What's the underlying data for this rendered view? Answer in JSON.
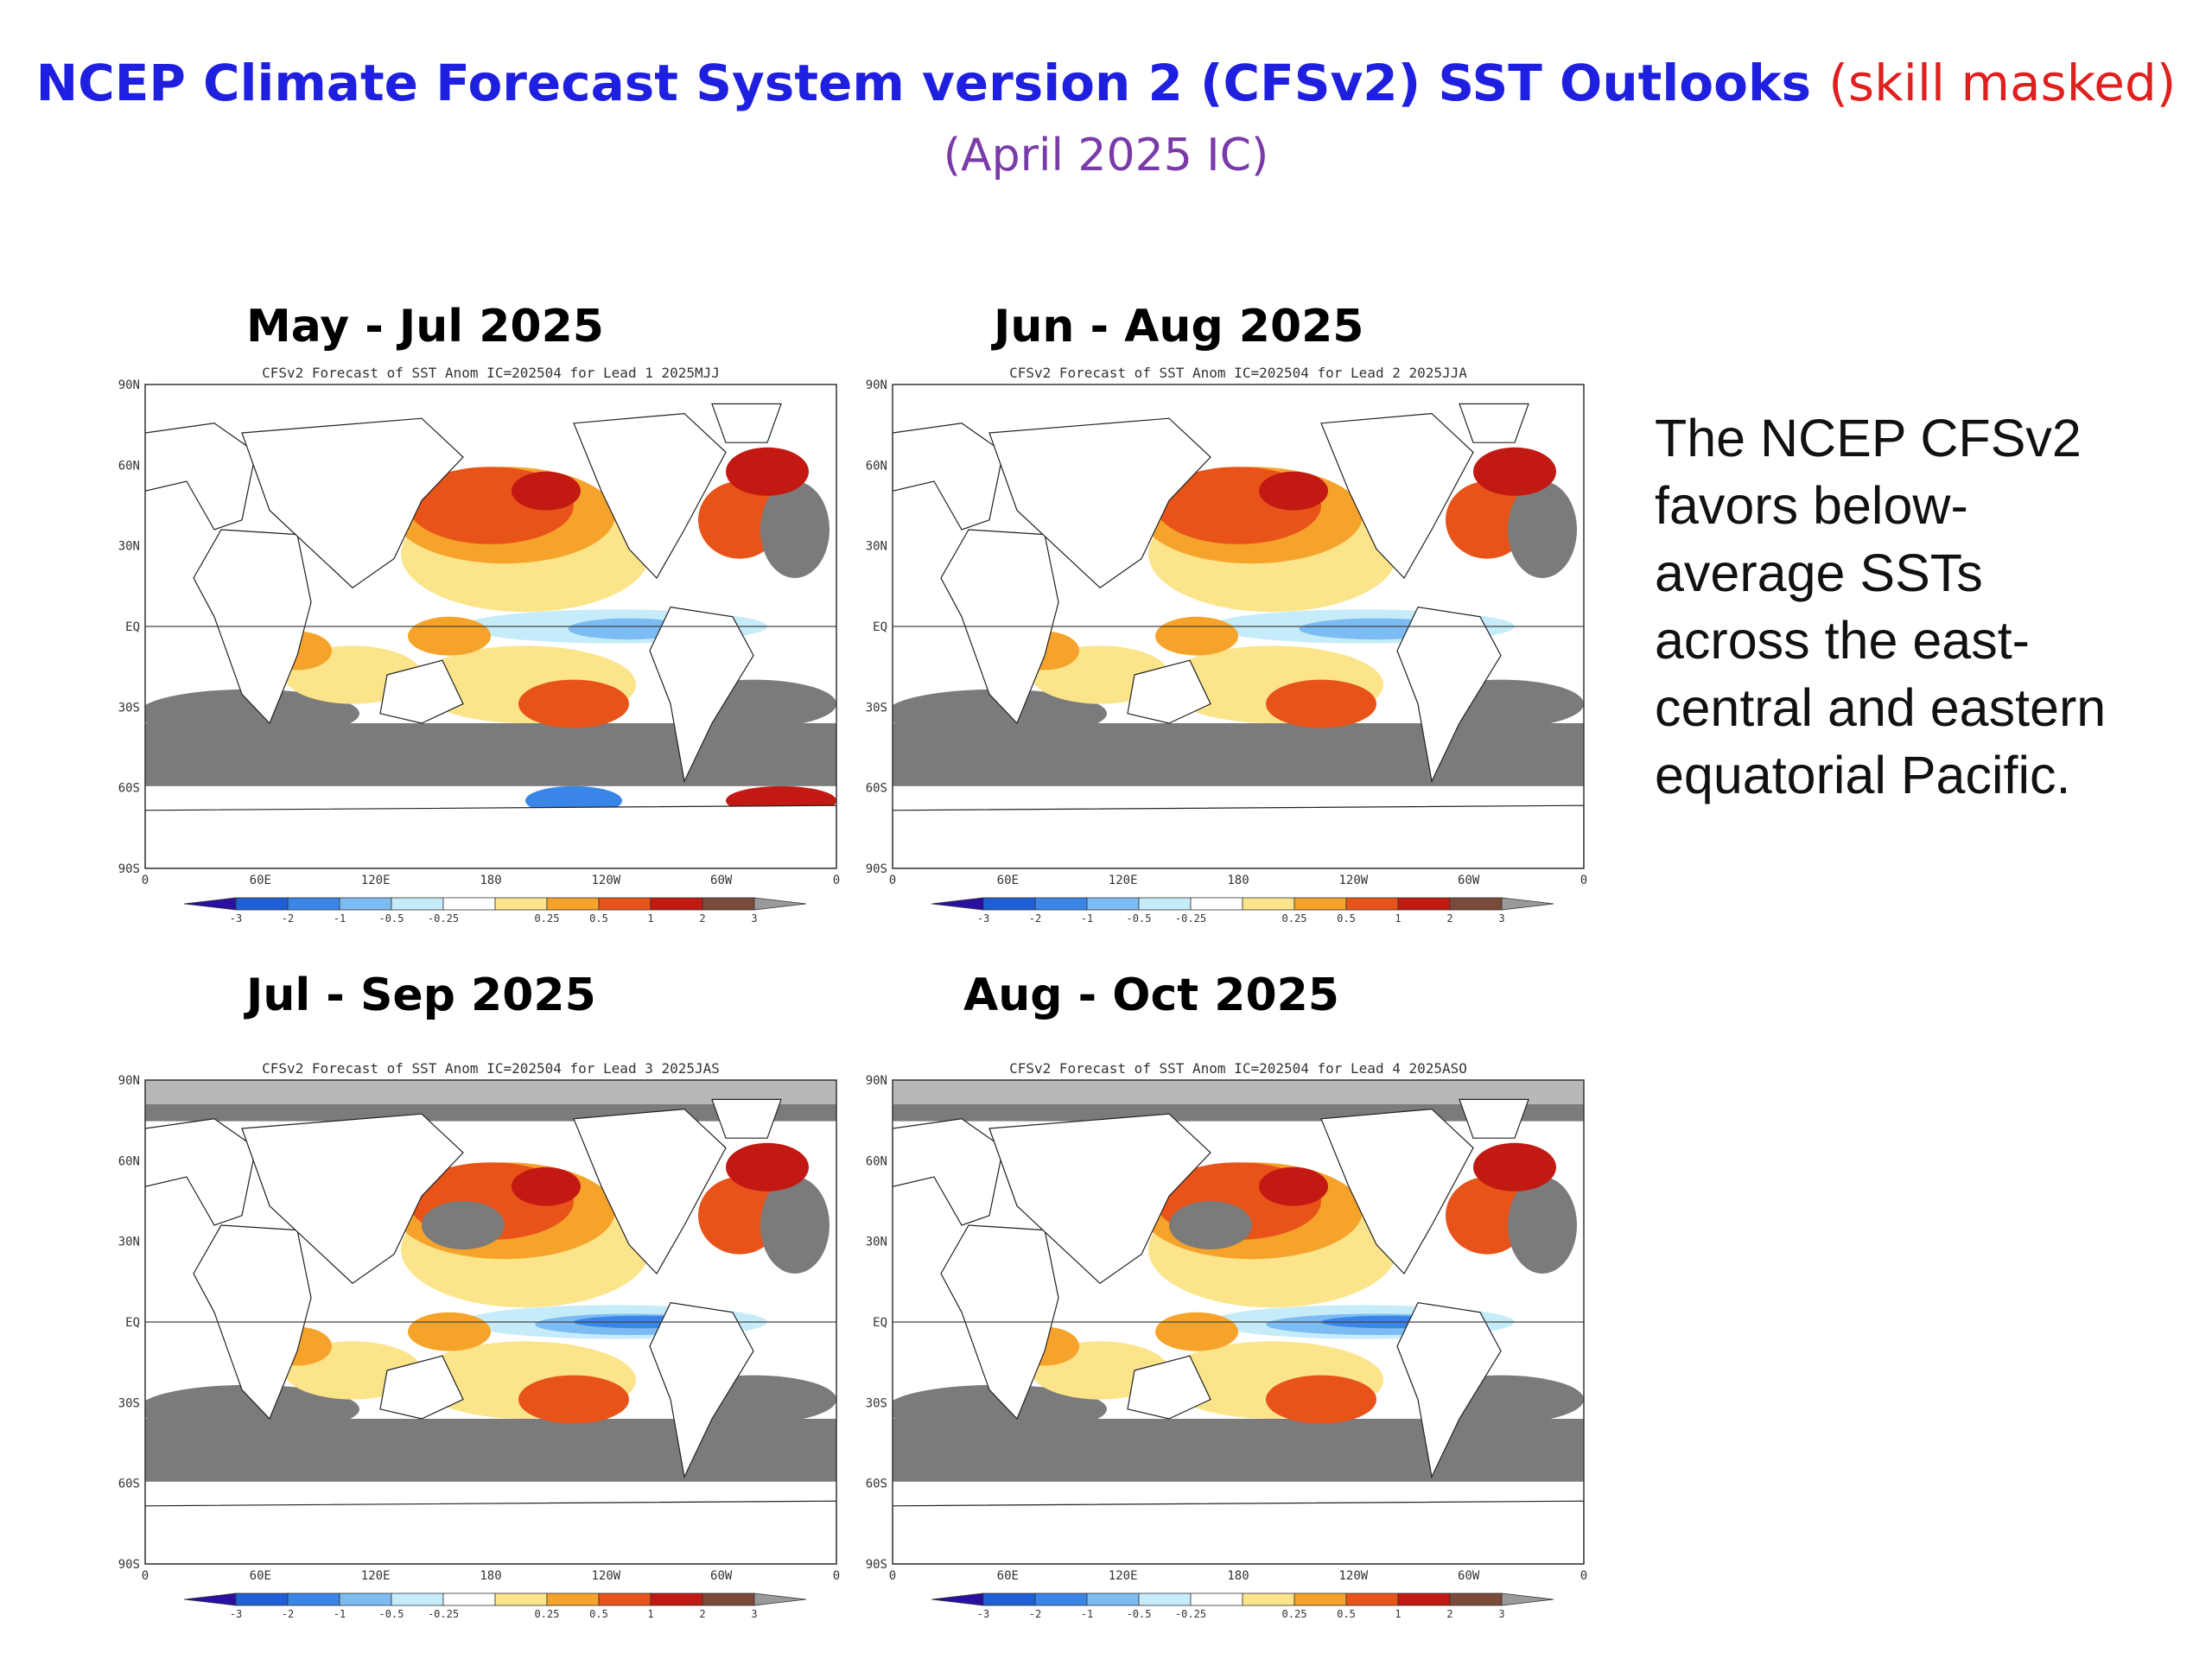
{
  "header": {
    "title_main": "NCEP Climate Forecast System version 2 (CFSv2) SST Outlooks",
    "title_note": "(skill masked)",
    "subtitle": "(April 2025 IC)"
  },
  "description": {
    "lines": [
      "The NCEP CFSv2",
      "favors below-",
      "average SSTs",
      "across the east-",
      "central and eastern",
      "equatorial Pacific."
    ]
  },
  "panels": [
    {
      "season": "May - Jul 2025",
      "caption": "CFSv2 Forecast of SST Anom IC=202504 for Lead 1 2025MJJ"
    },
    {
      "season": "Jun - Aug 2025",
      "caption": "CFSv2 Forecast of SST Anom IC=202504 for Lead 2 2025JJA"
    },
    {
      "season": "Jul - Sep 2025",
      "caption": "CFSv2 Forecast of SST Anom IC=202504 for Lead 3 2025JAS"
    },
    {
      "season": "Aug - Oct 2025",
      "caption": "CFSv2 Forecast of SST Anom IC=202504 for Lead 4 2025ASO"
    }
  ],
  "map_axes": {
    "lat_labels": [
      "90N",
      "60N",
      "30N",
      "EQ",
      "30S",
      "60S",
      "90S"
    ],
    "lon_labels": [
      "0",
      "60E",
      "120E",
      "180",
      "120W",
      "60W",
      "0"
    ]
  },
  "colorbar": {
    "tick_labels": [
      "-3",
      "-2",
      "-1",
      "-0.5",
      "-0.25",
      "0.25",
      "0.5",
      "1",
      "2",
      "3"
    ],
    "colors": [
      "#2b0fa0",
      "#1c5fd6",
      "#3a86e8",
      "#7dbcf2",
      "#c6ecfa",
      "#ffffff",
      "#fbe48a",
      "#f6a32b",
      "#e8531a",
      "#c21a12",
      "#7a4a3a",
      "#9a9a9a"
    ]
  }
}
